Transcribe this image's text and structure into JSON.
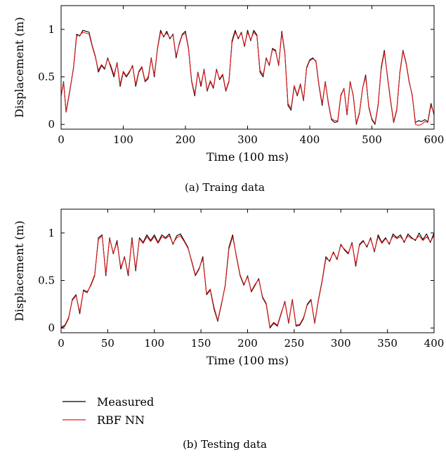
{
  "chart_data": [
    {
      "type": "line",
      "caption": "(a)  Traing data",
      "xlabel": "Time (100 ms)",
      "ylabel": "Displacement (m)",
      "xlim": [
        0,
        600
      ],
      "ylim": [
        -0.05,
        1.25
      ],
      "xticks": [
        0,
        100,
        200,
        300,
        400,
        500,
        600
      ],
      "yticks": [
        0,
        0.5,
        1
      ],
      "grid": false,
      "series": [
        {
          "name": "Measured",
          "color": "#000000",
          "x": [
            0,
            4,
            8,
            14,
            20,
            25,
            30,
            35,
            40,
            45,
            50,
            55,
            60,
            65,
            70,
            75,
            80,
            85,
            90,
            95,
            100,
            105,
            110,
            115,
            120,
            125,
            130,
            135,
            140,
            145,
            150,
            155,
            160,
            165,
            170,
            175,
            180,
            185,
            190,
            195,
            200,
            205,
            210,
            215,
            220,
            225,
            230,
            235,
            240,
            245,
            250,
            255,
            260,
            265,
            270,
            275,
            280,
            285,
            290,
            295,
            300,
            305,
            310,
            315,
            320,
            325,
            330,
            335,
            340,
            345,
            350,
            355,
            360,
            365,
            370,
            375,
            380,
            385,
            390,
            395,
            400,
            405,
            410,
            415,
            420,
            425,
            430,
            435,
            440,
            445,
            450,
            455,
            460,
            465,
            470,
            475,
            480,
            485,
            490,
            495,
            500,
            505,
            510,
            515,
            520,
            525,
            530,
            535,
            540,
            545,
            550,
            555,
            560,
            565,
            570,
            575,
            580,
            585,
            590,
            595,
            600
          ],
          "y": [
            0.3,
            0.45,
            0.13,
            0.35,
            0.6,
            0.95,
            0.93,
            0.99,
            0.98,
            0.97,
            0.83,
            0.72,
            0.55,
            0.62,
            0.58,
            0.7,
            0.6,
            0.5,
            0.65,
            0.4,
            0.55,
            0.5,
            0.55,
            0.62,
            0.4,
            0.55,
            0.6,
            0.45,
            0.48,
            0.7,
            0.5,
            0.8,
            0.99,
            0.92,
            0.98,
            0.9,
            0.95,
            0.7,
            0.85,
            0.95,
            0.98,
            0.8,
            0.45,
            0.3,
            0.55,
            0.4,
            0.58,
            0.35,
            0.45,
            0.38,
            0.58,
            0.47,
            0.52,
            0.35,
            0.45,
            0.88,
            0.99,
            0.9,
            0.97,
            0.82,
            0.99,
            0.88,
            0.99,
            0.94,
            0.55,
            0.5,
            0.7,
            0.62,
            0.8,
            0.78,
            0.62,
            0.98,
            0.75,
            0.2,
            0.15,
            0.4,
            0.3,
            0.42,
            0.25,
            0.6,
            0.68,
            0.7,
            0.66,
            0.4,
            0.2,
            0.45,
            0.22,
            0.05,
            0.02,
            0.03,
            0.3,
            0.38,
            0.1,
            0.45,
            0.3,
            0.0,
            0.12,
            0.38,
            0.52,
            0.18,
            0.05,
            0.0,
            0.2,
            0.6,
            0.78,
            0.5,
            0.25,
            0.02,
            0.15,
            0.55,
            0.78,
            0.65,
            0.45,
            0.3,
            0.02,
            0.04,
            0.03,
            0.05,
            0.03,
            0.22,
            0.1
          ]
        },
        {
          "name": "RBF NN",
          "color": "#e41a1c",
          "x": [
            0,
            4,
            8,
            14,
            20,
            25,
            30,
            35,
            40,
            45,
            50,
            55,
            60,
            65,
            70,
            75,
            80,
            85,
            90,
            95,
            100,
            105,
            110,
            115,
            120,
            125,
            130,
            135,
            140,
            145,
            150,
            155,
            160,
            165,
            170,
            175,
            180,
            185,
            190,
            195,
            200,
            205,
            210,
            215,
            220,
            225,
            230,
            235,
            240,
            245,
            250,
            255,
            260,
            265,
            270,
            275,
            280,
            285,
            290,
            295,
            300,
            305,
            310,
            315,
            320,
            325,
            330,
            335,
            340,
            345,
            350,
            355,
            360,
            365,
            370,
            375,
            380,
            385,
            390,
            395,
            400,
            405,
            410,
            415,
            420,
            425,
            430,
            435,
            440,
            445,
            450,
            455,
            460,
            465,
            470,
            475,
            480,
            485,
            490,
            495,
            500,
            505,
            510,
            515,
            520,
            525,
            530,
            535,
            540,
            545,
            550,
            555,
            560,
            565,
            570,
            575,
            580,
            585,
            590,
            595,
            600
          ],
          "y": [
            0.3,
            0.44,
            0.14,
            0.36,
            0.59,
            0.93,
            0.94,
            0.97,
            0.96,
            0.95,
            0.82,
            0.71,
            0.57,
            0.63,
            0.59,
            0.69,
            0.62,
            0.52,
            0.64,
            0.42,
            0.56,
            0.51,
            0.56,
            0.61,
            0.42,
            0.56,
            0.61,
            0.46,
            0.5,
            0.69,
            0.52,
            0.79,
            0.97,
            0.93,
            0.96,
            0.91,
            0.94,
            0.72,
            0.84,
            0.94,
            0.96,
            0.79,
            0.46,
            0.32,
            0.54,
            0.42,
            0.57,
            0.36,
            0.46,
            0.39,
            0.57,
            0.48,
            0.53,
            0.36,
            0.46,
            0.86,
            0.97,
            0.91,
            0.96,
            0.83,
            0.97,
            0.89,
            0.97,
            0.93,
            0.57,
            0.52,
            0.69,
            0.63,
            0.79,
            0.77,
            0.63,
            0.96,
            0.74,
            0.22,
            0.17,
            0.41,
            0.31,
            0.43,
            0.26,
            0.59,
            0.67,
            0.69,
            0.67,
            0.41,
            0.22,
            0.44,
            0.23,
            0.06,
            0.04,
            0.04,
            0.31,
            0.38,
            0.11,
            0.44,
            0.31,
            0.01,
            0.13,
            0.38,
            0.5,
            0.19,
            0.06,
            0.01,
            0.21,
            0.58,
            0.76,
            0.51,
            0.26,
            0.03,
            0.16,
            0.54,
            0.77,
            0.64,
            0.44,
            0.31,
            0.0,
            -0.01,
            0.0,
            0.03,
            0.02,
            0.2,
            0.11
          ]
        }
      ]
    },
    {
      "type": "line",
      "caption": "(b)  Testing data",
      "xlabel": "Time (100 ms)",
      "ylabel": "Displacement (m)",
      "xlim": [
        0,
        400
      ],
      "ylim": [
        -0.05,
        1.25
      ],
      "xticks": [
        0,
        50,
        100,
        150,
        200,
        250,
        300,
        350,
        400
      ],
      "yticks": [
        0,
        0.5,
        1
      ],
      "grid": false,
      "series": [
        {
          "name": "Measured",
          "color": "#000000",
          "x": [
            0,
            4,
            8,
            12,
            16,
            20,
            24,
            28,
            32,
            36,
            40,
            44,
            48,
            52,
            56,
            60,
            64,
            68,
            72,
            76,
            80,
            84,
            88,
            92,
            96,
            100,
            104,
            108,
            112,
            116,
            120,
            124,
            128,
            132,
            136,
            140,
            144,
            148,
            152,
            156,
            160,
            164,
            168,
            172,
            176,
            180,
            184,
            188,
            192,
            196,
            200,
            204,
            208,
            212,
            216,
            220,
            224,
            228,
            232,
            236,
            240,
            244,
            248,
            252,
            256,
            260,
            264,
            268,
            272,
            276,
            280,
            284,
            288,
            292,
            296,
            300,
            304,
            308,
            312,
            316,
            320,
            324,
            328,
            332,
            336,
            340,
            344,
            348,
            352,
            356,
            360,
            364,
            368,
            372,
            376,
            380,
            384,
            388,
            392,
            396,
            400
          ],
          "y": [
            0.0,
            0.02,
            0.1,
            0.3,
            0.35,
            0.15,
            0.4,
            0.38,
            0.45,
            0.55,
            0.95,
            0.98,
            0.55,
            0.95,
            0.78,
            0.92,
            0.62,
            0.75,
            0.55,
            0.95,
            0.6,
            0.95,
            0.9,
            0.98,
            0.92,
            0.98,
            0.9,
            0.98,
            0.95,
            0.99,
            0.88,
            0.97,
            0.99,
            0.92,
            0.85,
            0.7,
            0.55,
            0.62,
            0.75,
            0.35,
            0.4,
            0.2,
            0.07,
            0.25,
            0.45,
            0.85,
            0.98,
            0.75,
            0.55,
            0.45,
            0.55,
            0.38,
            0.45,
            0.52,
            0.32,
            0.25,
            0.0,
            0.05,
            0.02,
            0.15,
            0.28,
            0.05,
            0.3,
            0.02,
            0.03,
            0.1,
            0.25,
            0.3,
            0.05,
            0.3,
            0.5,
            0.75,
            0.7,
            0.8,
            0.72,
            0.88,
            0.82,
            0.78,
            0.9,
            0.65,
            0.88,
            0.92,
            0.85,
            0.95,
            0.8,
            0.98,
            0.9,
            0.95,
            0.88,
            0.99,
            0.95,
            0.98,
            0.9,
            0.99,
            0.95,
            0.92,
            1.0,
            0.93,
            0.99,
            0.9,
            1.0
          ]
        },
        {
          "name": "RBF NN",
          "color": "#e41a1c",
          "x": [
            0,
            4,
            8,
            12,
            16,
            20,
            24,
            28,
            32,
            36,
            40,
            44,
            48,
            52,
            56,
            60,
            64,
            68,
            72,
            76,
            80,
            84,
            88,
            92,
            96,
            100,
            104,
            108,
            112,
            116,
            120,
            124,
            128,
            132,
            136,
            140,
            144,
            148,
            152,
            156,
            160,
            164,
            168,
            172,
            176,
            180,
            184,
            188,
            192,
            196,
            200,
            204,
            208,
            212,
            216,
            220,
            224,
            228,
            232,
            236,
            240,
            244,
            248,
            252,
            256,
            260,
            264,
            268,
            272,
            276,
            280,
            284,
            288,
            292,
            296,
            300,
            304,
            308,
            312,
            316,
            320,
            324,
            328,
            332,
            336,
            340,
            344,
            348,
            352,
            356,
            360,
            364,
            368,
            372,
            376,
            380,
            384,
            388,
            392,
            396,
            400
          ],
          "y": [
            0.01,
            0.03,
            0.11,
            0.29,
            0.34,
            0.17,
            0.39,
            0.37,
            0.46,
            0.56,
            0.93,
            0.97,
            0.57,
            0.94,
            0.79,
            0.9,
            0.64,
            0.74,
            0.57,
            0.93,
            0.62,
            0.94,
            0.89,
            0.96,
            0.91,
            0.96,
            0.89,
            0.96,
            0.94,
            0.97,
            0.89,
            0.95,
            0.97,
            0.91,
            0.84,
            0.71,
            0.56,
            0.63,
            0.73,
            0.36,
            0.41,
            0.22,
            0.08,
            0.26,
            0.44,
            0.83,
            0.96,
            0.76,
            0.56,
            0.46,
            0.54,
            0.39,
            0.46,
            0.51,
            0.33,
            0.26,
            0.01,
            0.06,
            0.03,
            0.16,
            0.27,
            0.06,
            0.29,
            0.03,
            0.04,
            0.11,
            0.24,
            0.29,
            0.06,
            0.29,
            0.49,
            0.73,
            0.71,
            0.79,
            0.73,
            0.87,
            0.83,
            0.79,
            0.89,
            0.67,
            0.87,
            0.91,
            0.86,
            0.94,
            0.81,
            0.96,
            0.89,
            0.94,
            0.89,
            0.97,
            0.94,
            0.96,
            0.91,
            0.97,
            0.94,
            0.93,
            0.97,
            0.92,
            0.96,
            0.91,
            0.97
          ]
        }
      ]
    }
  ],
  "legend": {
    "position": "bottom-left",
    "items": [
      {
        "label": "Measured",
        "color": "#000000"
      },
      {
        "label": "RBF NN",
        "color": "#e41a1c"
      }
    ]
  }
}
